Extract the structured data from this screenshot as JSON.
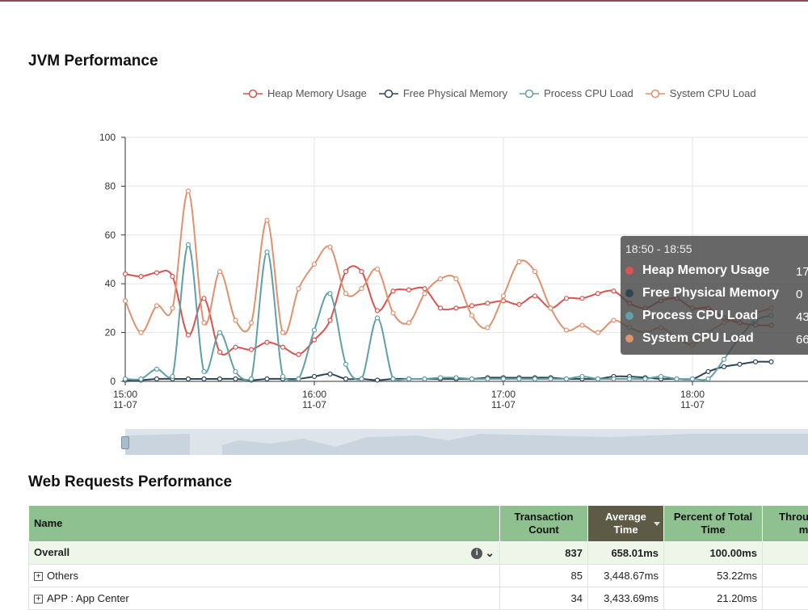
{
  "jvm": {
    "title": "JVM Performance",
    "legend": [
      {
        "label": "Heap Memory Usage",
        "color": "#d9534f"
      },
      {
        "label": "Free Physical Memory",
        "color": "#2f4554"
      },
      {
        "label": "Process CPU Load",
        "color": "#61a0a8"
      },
      {
        "label": "System CPU Load",
        "color": "#e0916e"
      }
    ],
    "tooltip": {
      "title": "18:50 - 18:55",
      "rows": [
        {
          "label": "Heap Memory Usage",
          "value": "17",
          "color": "#d9534f"
        },
        {
          "label": "Free Physical Memory",
          "value": "0",
          "color": "#2f4554"
        },
        {
          "label": "Process CPU Load",
          "value": "43",
          "color": "#61a0a8"
        },
        {
          "label": "System CPU Load",
          "value": "66",
          "color": "#e0916e"
        }
      ]
    }
  },
  "chart_data": {
    "type": "line",
    "ylim": [
      0,
      100
    ],
    "y_ticks": [
      "0",
      "20",
      "40",
      "60",
      "80",
      "100"
    ],
    "x_ticks": [
      {
        "time": "15:00",
        "date": "11-07"
      },
      {
        "time": "16:00",
        "date": "11-07"
      },
      {
        "time": "17:00",
        "date": "11-07"
      },
      {
        "time": "18:00",
        "date": "11-07"
      }
    ],
    "x": [
      "15:00",
      "15:05",
      "15:10",
      "15:15",
      "15:20",
      "15:25",
      "15:30",
      "15:35",
      "15:40",
      "15:45",
      "15:50",
      "15:55",
      "16:00",
      "16:05",
      "16:10",
      "16:15",
      "16:20",
      "16:25",
      "16:30",
      "16:35",
      "16:40",
      "16:45",
      "16:50",
      "16:55",
      "17:00",
      "17:05",
      "17:10",
      "17:15",
      "17:20",
      "17:25",
      "17:30",
      "17:35",
      "17:40",
      "17:45",
      "17:50",
      "17:55",
      "18:00",
      "18:05",
      "18:10",
      "18:15",
      "18:20",
      "18:25"
    ],
    "series": [
      {
        "name": "Heap Memory Usage",
        "color": "#d9534f",
        "values": [
          44,
          43,
          44.5,
          43,
          19,
          34,
          12,
          14,
          13,
          16,
          14,
          11,
          17,
          25,
          45,
          45,
          29,
          37,
          37.5,
          38,
          30,
          30,
          31,
          32,
          33,
          31.5,
          35,
          30,
          34,
          34,
          36,
          37,
          32,
          30,
          33,
          34,
          30,
          30,
          26,
          24,
          23,
          23
        ]
      },
      {
        "name": "Free Physical Memory",
        "color": "#2f4554",
        "values": [
          0.5,
          0.5,
          1,
          1,
          1,
          1,
          1,
          1,
          0.5,
          1,
          1,
          1,
          2,
          3,
          1,
          1,
          0.5,
          1,
          1,
          1,
          1,
          1,
          1,
          1.5,
          1.5,
          1.5,
          1.5,
          1.5,
          1,
          1,
          1,
          2,
          2,
          1.5,
          1,
          1,
          1,
          4,
          6,
          7,
          8,
          8
        ]
      },
      {
        "name": "Process CPU Load",
        "color": "#61a0a8",
        "values": [
          1,
          1,
          5,
          2,
          56,
          4,
          20,
          4,
          1,
          53,
          2,
          1,
          21,
          36,
          7,
          1,
          26,
          1,
          1,
          1,
          1.5,
          1.5,
          1,
          1,
          1,
          1,
          1,
          1,
          1,
          2,
          1,
          1,
          1,
          1,
          2,
          1,
          1,
          1,
          9,
          18,
          25,
          27
        ]
      },
      {
        "name": "System CPU Load",
        "color": "#e0916e",
        "values": [
          33,
          20,
          31,
          30,
          78,
          24,
          45,
          25,
          24,
          66,
          20,
          38,
          48,
          55,
          36,
          38,
          46,
          28,
          24,
          36,
          42,
          42,
          27,
          22,
          35,
          49,
          45,
          30,
          21,
          23,
          20,
          25,
          22,
          20,
          22,
          18,
          15,
          20,
          24,
          26,
          28,
          30
        ]
      }
    ]
  },
  "web": {
    "title": "Web Requests Performance",
    "columns": {
      "name": "Name",
      "count_line1": "Transaction",
      "count_line2": "Count",
      "avg_line1": "Average",
      "avg_line2": "Time",
      "pct_line1": "Percent of Total",
      "pct_line2": "Time",
      "thr_line1": "Throughp",
      "thr_line2": "m"
    },
    "rows": [
      {
        "name": "Overall",
        "count": "837",
        "avg": "658.01ms",
        "pct": "100.00ms",
        "thr": ""
      },
      {
        "name": "Others",
        "count": "85",
        "avg": "3,448.67ms",
        "pct": "53.22ms",
        "thr": ""
      },
      {
        "name": "APP : App Center",
        "count": "34",
        "avg": "3,433.69ms",
        "pct": "21.20ms",
        "thr": ""
      }
    ]
  }
}
